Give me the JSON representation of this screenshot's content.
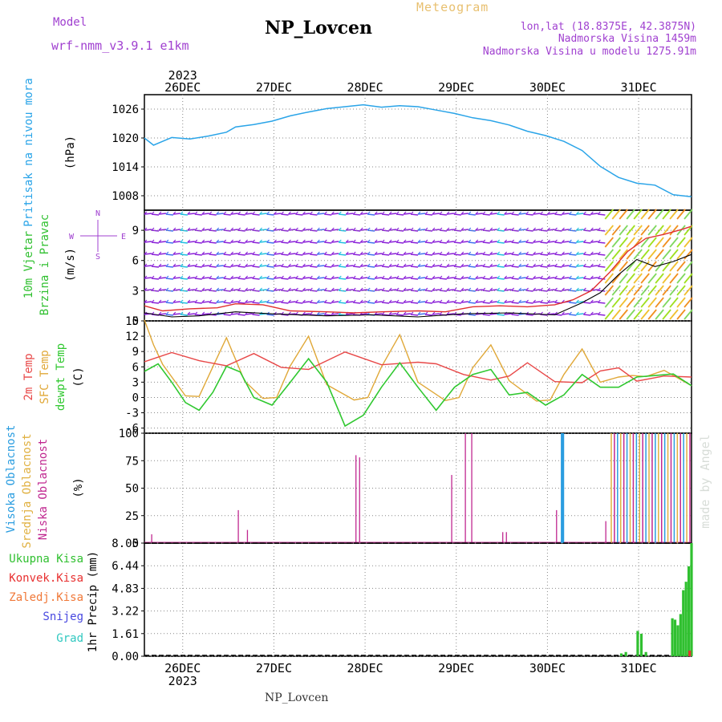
{
  "header": {
    "title": "NP_Lovcen",
    "meteogram_label": "Meteogram",
    "model_label": "Model",
    "model_name": "wrf-nmm_v3.9.1 e1km",
    "lonlat": "lon,lat (18.8375E, 42.3875N)",
    "elevation": "Nadmorska Visina 1459m",
    "model_elevation": "Nadmorska Visina u modelu 1275.91m"
  },
  "time_axis": {
    "year": "2023",
    "days": [
      "26DEC",
      "27DEC",
      "28DEC",
      "29DEC",
      "30DEC",
      "31DEC"
    ]
  },
  "footer": {
    "station": "NP_Lovcen",
    "credit": "made by Angel"
  },
  "colors": {
    "pressure": "#2aa4e8",
    "wind_speed": "#e03030",
    "wind_gust": "#000000",
    "temp_2m": "#e84848",
    "temp_sfc": "#e0a838",
    "dewpoint": "#30c830",
    "cloud_high": "#2a9de0",
    "cloud_mid": "#e0b040",
    "cloud_low": "#c02890",
    "precip_total": "#30c030",
    "precip_conv": "#e83030",
    "legend_rain": "#30c030",
    "legend_conv": "#e83030",
    "legend_frz": "#f07838",
    "legend_snow": "#4848e0",
    "legend_grad": "#30c8c0"
  },
  "chart_data": [
    {
      "type": "line",
      "panel": "pressure",
      "ylabel_lines": [
        "Pritisak na nivou mora"
      ],
      "unit": "(hPa)",
      "yticks": [
        1008,
        1014,
        1020,
        1026
      ],
      "ylim": [
        1005,
        1029
      ],
      "grid": true,
      "series": [
        {
          "x": [
            0,
            0.1,
            0.2,
            0.3,
            0.5,
            0.7,
            0.9,
            1.0,
            1.2,
            1.4,
            1.6,
            1.8,
            2.0,
            2.2,
            2.4,
            2.6,
            2.8,
            3.0,
            3.2,
            3.4,
            3.6,
            3.8,
            4.0,
            4.2,
            4.4,
            4.6,
            4.8,
            5.0,
            5.2,
            5.4,
            5.6,
            5.8,
            6.0
          ],
          "y": [
            1020,
            1018.5,
            1019.3,
            1020.1,
            1019.8,
            1020.4,
            1021.2,
            1022.3,
            1022.8,
            1023.5,
            1024.6,
            1025.4,
            1026.1,
            1026.5,
            1026.9,
            1026.4,
            1026.7,
            1026.5,
            1025.8,
            1025.1,
            1024.2,
            1023.6,
            1022.7,
            1021.4,
            1020.5,
            1019.3,
            1017.4,
            1014.1,
            1011.8,
            1010.6,
            1010.2,
            1008.2,
            1007.8
          ]
        }
      ]
    },
    {
      "type": "line",
      "panel": "wind",
      "ylabel_lines": [
        "10m Vjetar",
        "Brzina i Pravac"
      ],
      "unit": "(m/s)",
      "compass": {
        "n": "N",
        "s": "S",
        "w": "W",
        "e": "E"
      },
      "yticks": [
        0,
        3,
        6,
        9
      ],
      "ylim": [
        0,
        11
      ],
      "grid": true,
      "series": [
        {
          "name": "speed",
          "x": [
            0,
            0.2,
            0.5,
            0.8,
            1.0,
            1.3,
            1.6,
            2.0,
            2.3,
            2.6,
            3.0,
            3.3,
            3.6,
            3.9,
            4.2,
            4.5,
            4.7,
            4.9,
            5.1,
            5.3,
            5.5,
            5.7,
            5.9,
            6.0
          ],
          "y": [
            1.5,
            1.0,
            1.2,
            1.3,
            1.7,
            1.6,
            1.0,
            0.9,
            0.8,
            0.9,
            1.0,
            0.9,
            1.4,
            1.5,
            1.4,
            1.6,
            2.1,
            3.0,
            4.8,
            6.9,
            8.2,
            8.6,
            9.1,
            9.4
          ]
        },
        {
          "name": "gust",
          "x": [
            0,
            0.3,
            0.6,
            1.0,
            1.4,
            2.0,
            2.5,
            3.0,
            3.5,
            4.0,
            4.5,
            4.8,
            5.0,
            5.2,
            5.4,
            5.6,
            5.8,
            6.0
          ],
          "y": [
            0.8,
            0.4,
            0.5,
            0.9,
            0.7,
            0.5,
            0.6,
            0.4,
            0.7,
            0.8,
            0.6,
            1.8,
            2.8,
            4.6,
            6.1,
            5.4,
            5.9,
            6.6
          ]
        }
      ]
    },
    {
      "type": "line",
      "panel": "temperature",
      "ylabel_lines": [
        "2m Temp",
        "SFC Temp",
        "dewpt Temp"
      ],
      "unit": "(C)",
      "yticks": [
        -6,
        -3,
        0,
        3,
        6,
        9,
        12,
        15
      ],
      "ylim": [
        -7,
        15
      ],
      "grid": true,
      "series": [
        {
          "name": "2m Temp",
          "x": [
            0,
            0.3,
            0.6,
            0.9,
            1.2,
            1.5,
            1.8,
            2.2,
            2.6,
            3.0,
            3.2,
            3.5,
            3.8,
            4.0,
            4.2,
            4.5,
            4.8,
            5.0,
            5.2,
            5.4,
            5.7,
            6.0
          ],
          "y": [
            7.0,
            8.8,
            7.2,
            6.2,
            8.6,
            5.9,
            5.5,
            8.9,
            6.4,
            6.9,
            6.6,
            4.5,
            3.4,
            4.2,
            6.8,
            3.1,
            2.9,
            5.2,
            5.8,
            3.2,
            4.2,
            4.0
          ]
        },
        {
          "name": "SFC Temp",
          "x": [
            0,
            0.1,
            0.2,
            0.45,
            0.6,
            0.75,
            0.9,
            1.1,
            1.3,
            1.45,
            1.6,
            1.8,
            2.0,
            2.3,
            2.45,
            2.6,
            2.8,
            3.0,
            3.3,
            3.45,
            3.6,
            3.8,
            4.0,
            4.3,
            4.45,
            4.6,
            4.8,
            5.0,
            5.2,
            5.35,
            5.5,
            5.7,
            6.0
          ],
          "y": [
            15.2,
            10.3,
            6.5,
            0.3,
            0.2,
            6.0,
            11.7,
            3.2,
            -0.2,
            0.0,
            6.2,
            12.0,
            2.5,
            -0.5,
            0.0,
            6.0,
            12.3,
            3.0,
            -0.6,
            0.0,
            5.8,
            10.3,
            3.3,
            -0.7,
            -0.5,
            4.5,
            9.5,
            3.0,
            4.0,
            4.3,
            4.1,
            5.3,
            2.3
          ]
        },
        {
          "name": "dewpt Temp",
          "x": [
            0,
            0.15,
            0.3,
            0.45,
            0.6,
            0.75,
            0.9,
            1.05,
            1.2,
            1.4,
            1.6,
            1.8,
            2.0,
            2.2,
            2.4,
            2.6,
            2.8,
            3.0,
            3.2,
            3.4,
            3.6,
            3.8,
            4.0,
            4.2,
            4.4,
            4.6,
            4.8,
            5.0,
            5.2,
            5.4,
            5.6,
            5.8,
            6.0
          ],
          "y": [
            5.1,
            6.6,
            3.0,
            -1.0,
            -2.5,
            1.0,
            6.1,
            5.0,
            0.0,
            -1.5,
            3.0,
            7.6,
            3.0,
            -5.6,
            -3.5,
            2.0,
            6.8,
            2.0,
            -2.5,
            2.0,
            4.5,
            5.5,
            0.5,
            1.0,
            -1.5,
            0.5,
            4.5,
            2.0,
            2.0,
            4.0,
            4.3,
            4.6,
            2.3
          ]
        }
      ]
    },
    {
      "type": "bar",
      "panel": "cloudiness",
      "ylabel_lines": [
        "Visoka Oblacnost",
        "Srednja Oblacnost",
        "Niska Oblacnost"
      ],
      "unit": "(%)",
      "yticks": [
        0,
        25,
        50,
        75,
        100
      ],
      "ylim": [
        0,
        100
      ],
      "grid": true,
      "low_cloud": {
        "x": [
          0.08,
          1.03,
          1.13,
          2.32,
          2.36,
          3.37,
          3.52,
          3.59,
          3.93,
          3.97,
          4.52,
          5.06
        ],
        "values": [
          8,
          30,
          12,
          80,
          78,
          62,
          100,
          100,
          10,
          10,
          30,
          20
        ]
      },
      "high_cloud": {
        "x": [
          4.58,
          4.59
        ],
        "values": [
          100,
          100
        ]
      },
      "dense_overcast_x_range": [
        5.12,
        6.0
      ],
      "dense_overcast_value": 100
    },
    {
      "type": "bar",
      "panel": "precipitation",
      "legend_lines": [
        "Ukupna Kisa",
        "Konvek.Kisa",
        "Zaledj.Kisa",
        "Snijeg",
        "Grad"
      ],
      "ylabel_lines": [
        "1hr Precip (mm)"
      ],
      "yticks": [
        0,
        1.61,
        3.22,
        4.83,
        6.44,
        8.05
      ],
      "ylim": [
        0,
        8.05
      ],
      "grid": true,
      "total_rain": {
        "x": [
          5.23,
          5.28,
          5.41,
          5.45,
          5.5,
          5.79,
          5.82,
          5.85,
          5.88,
          5.91,
          5.94,
          5.97,
          6.0
        ],
        "values": [
          0.2,
          0.3,
          1.8,
          1.6,
          0.3,
          2.7,
          2.6,
          2.2,
          3.0,
          4.7,
          5.3,
          6.4,
          8.05
        ]
      },
      "convective_rain": {
        "x": [
          5.98
        ],
        "values": [
          0.4
        ]
      }
    }
  ]
}
